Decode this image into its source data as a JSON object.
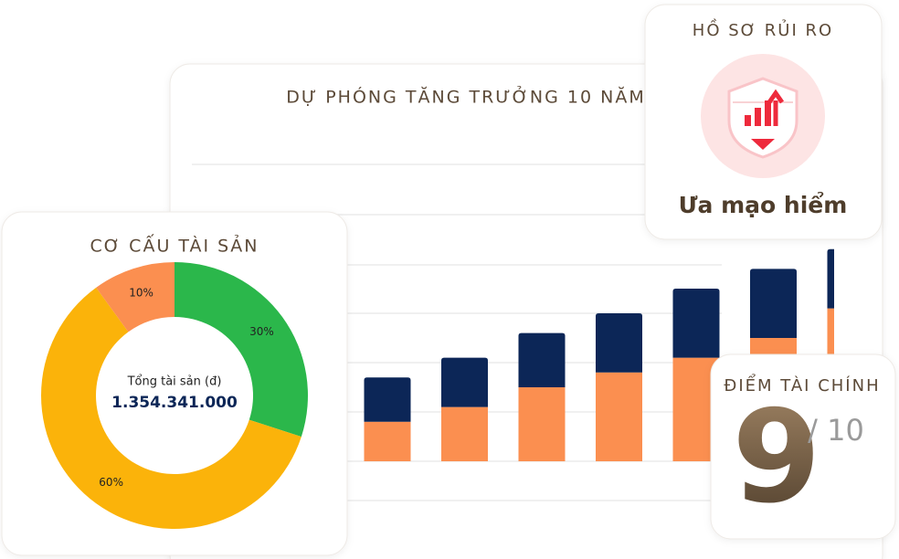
{
  "chart_data": [
    {
      "type": "pie",
      "title": "CƠ CẤU TÀI SẢN",
      "categories": [
        null,
        null,
        null
      ],
      "values": [
        30,
        60,
        10
      ],
      "value_labels": [
        "30%",
        "60%",
        "10%"
      ],
      "colors": [
        "#2bb74b",
        "#fbb30a",
        "#fb8f50"
      ],
      "center_label": "Tổng tài sản (đ)",
      "center_value": "1.354.341.000"
    },
    {
      "type": "stacked-bar",
      "title": "DỰ PHÓNG TĂNG TRƯỞNG 10 NĂM",
      "categories": [
        null,
        null,
        null,
        null,
        null,
        null,
        null
      ],
      "series": [
        {
          "color": "#fb8f50",
          "values": [
            0.8,
            1.1,
            1.5,
            1.8,
            2.1,
            2.5,
            3.1
          ]
        },
        {
          "color": "#0c2657",
          "values": [
            0.9,
            1.0,
            1.1,
            1.2,
            1.4,
            1.4,
            1.2
          ]
        }
      ],
      "ylim": [
        0,
        5
      ]
    }
  ],
  "risk_card": {
    "title": "HỒ SƠ RỦI RO",
    "label": "Ưa mạo hiểm"
  },
  "score_card": {
    "title": "ĐIỂM TÀI CHÍNH",
    "score": "9",
    "out_of": "/ 10"
  }
}
